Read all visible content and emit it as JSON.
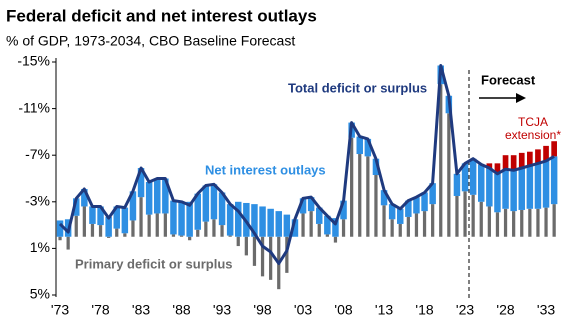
{
  "chart_data": {
    "type": "bar",
    "title": "Federal deficit and net interest outlays",
    "subtitle": "% of GDP, 1973-2034, CBO Baseline Forecast",
    "forecast_label": "Forecast",
    "categories": [
      "'73",
      null,
      null,
      null,
      null,
      "'78",
      null,
      null,
      null,
      null,
      "'83",
      null,
      null,
      null,
      null,
      "'88",
      null,
      null,
      null,
      null,
      "'93",
      null,
      null,
      null,
      null,
      "'98",
      null,
      null,
      null,
      null,
      "'03",
      null,
      null,
      null,
      null,
      "'08",
      null,
      null,
      null,
      null,
      "'13",
      null,
      null,
      null,
      null,
      "'18",
      null,
      null,
      null,
      null,
      "'23",
      null,
      null,
      null,
      null,
      "'28",
      null,
      null,
      null,
      null,
      "'33",
      null
    ],
    "ylim": [
      5,
      -15
    ],
    "yticks": [
      {
        "value": -15,
        "label": "-15%"
      },
      {
        "value": -11,
        "label": "-11%"
      },
      {
        "value": -7,
        "label": "-7%"
      },
      {
        "value": -3,
        "label": "-3%"
      },
      {
        "value": 1,
        "label": "1%"
      },
      {
        "value": 5,
        "label": "5%"
      }
    ],
    "series": [
      {
        "name": "Primary deficit or surplus",
        "color": "#6b6b6b",
        "values": [
          0.3,
          1.1,
          -1.8,
          -2.6,
          -1.1,
          -1.0,
          0.1,
          -0.7,
          -0.3,
          -1.4,
          -3.4,
          -1.9,
          -2.0,
          -2.0,
          -0.2,
          -0.1,
          0.3,
          -0.6,
          -1.3,
          -1.5,
          -1.0,
          -0.1,
          0.8,
          1.6,
          2.5,
          3.4,
          3.7,
          4.5,
          3.1,
          0.0,
          -2.0,
          -2.2,
          -1.1,
          -0.2,
          0.5,
          -1.5,
          -8.5,
          -7.1,
          -6.9,
          -5.3,
          -2.7,
          -1.5,
          -1.1,
          -1.7,
          -2.0,
          -2.2,
          -2.8,
          -13.1,
          -10.6,
          -3.5,
          -3.9,
          -3.6,
          -3.0,
          -2.6,
          -2.1,
          -2.4,
          -2.2,
          -2.3,
          -2.4,
          -2.4,
          -2.5,
          -2.8
        ]
      },
      {
        "name": "Net interest outlays",
        "color": "#2e8fe3",
        "values": [
          -1.4,
          -1.5,
          -1.5,
          -1.5,
          -1.5,
          -1.6,
          -1.7,
          -1.9,
          -2.2,
          -2.5,
          -2.5,
          -2.8,
          -3.0,
          -3.0,
          -2.9,
          -2.9,
          -3.0,
          -3.1,
          -3.1,
          -3.0,
          -2.8,
          -2.7,
          -3.0,
          -2.9,
          -2.8,
          -2.6,
          -2.4,
          -2.2,
          -1.9,
          -1.5,
          -1.3,
          -1.2,
          -1.4,
          -1.6,
          -1.6,
          -1.6,
          -1.3,
          -1.5,
          -1.5,
          -1.4,
          -1.3,
          -1.3,
          -1.3,
          -1.4,
          -1.4,
          -1.6,
          -1.8,
          -1.6,
          -1.5,
          -1.9,
          -2.4,
          -3.1,
          -3.2,
          -3.3,
          -3.3,
          -3.4,
          -3.5,
          -3.6,
          -3.7,
          -3.9,
          -4.0,
          -4.1
        ]
      },
      {
        "name": "TCJA extension*",
        "color": "#c00000",
        "values": [
          null,
          null,
          null,
          null,
          null,
          null,
          null,
          null,
          null,
          null,
          null,
          null,
          null,
          null,
          null,
          null,
          null,
          null,
          null,
          null,
          null,
          null,
          null,
          null,
          null,
          null,
          null,
          null,
          null,
          null,
          null,
          null,
          null,
          null,
          null,
          null,
          null,
          null,
          null,
          null,
          null,
          null,
          null,
          null,
          null,
          null,
          null,
          null,
          null,
          null,
          null,
          null,
          null,
          -0.4,
          -0.9,
          -1.2,
          -1.3,
          -1.3,
          -1.2,
          -1.2,
          -1.3,
          -1.3
        ]
      },
      {
        "name": "Total deficit or surplus",
        "color": "#1f3a7f",
        "type": "line",
        "values": [
          -1.1,
          -0.4,
          -3.3,
          -4.1,
          -2.6,
          -2.6,
          -1.6,
          -2.6,
          -2.5,
          -3.9,
          -5.9,
          -4.7,
          -5.0,
          -5.0,
          -3.1,
          -3.0,
          -2.7,
          -3.7,
          -4.4,
          -4.5,
          -3.8,
          -2.8,
          -2.2,
          -1.3,
          -0.3,
          0.8,
          1.3,
          2.3,
          1.2,
          -1.5,
          -3.3,
          -3.4,
          -2.5,
          -1.8,
          -1.1,
          -3.1,
          -9.8,
          -8.6,
          -8.4,
          -6.7,
          -4.0,
          -2.8,
          -2.4,
          -3.1,
          -3.4,
          -3.8,
          -4.6,
          -14.7,
          -12.1,
          -5.4,
          -6.3,
          -6.7,
          -6.2,
          -5.9,
          -5.4,
          -5.8,
          -5.7,
          -5.9,
          -6.1,
          -6.3,
          -6.5,
          -6.9
        ]
      }
    ]
  }
}
